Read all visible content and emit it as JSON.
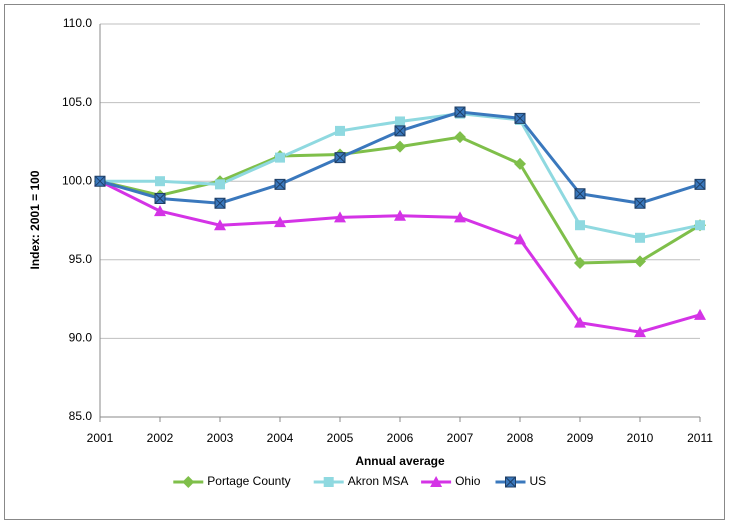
{
  "chart_data": {
    "type": "line",
    "y_label": "Index: 2001 = 100",
    "x_label": "Annual average",
    "categories": [
      "2001",
      "2002",
      "2003",
      "2004",
      "2005",
      "2006",
      "2007",
      "2008",
      "2009",
      "2010",
      "2011"
    ],
    "series": [
      {
        "name": "Portage County",
        "color": "#7fbf4a",
        "marker": "diamond",
        "values": [
          100,
          99.1,
          100,
          101.6,
          101.7,
          102.2,
          102.8,
          101.1,
          94.8,
          94.9,
          97.2
        ]
      },
      {
        "name": "Akron MSA",
        "color": "#8fd9e0",
        "marker": "square",
        "values": [
          100,
          100.0,
          99.8,
          101.5,
          103.2,
          103.8,
          104.3,
          103.9,
          97.2,
          96.4,
          97.2
        ]
      },
      {
        "name": "Ohio",
        "color": "#d433e6",
        "marker": "triangle",
        "values": [
          100,
          98.1,
          97.2,
          97.4,
          97.7,
          97.8,
          97.7,
          96.3,
          91.0,
          90.4,
          91.5
        ]
      },
      {
        "name": "US",
        "color": "#3a78bd",
        "marker": "xsquare",
        "values": [
          100,
          98.9,
          98.6,
          99.8,
          101.5,
          103.2,
          104.4,
          104.0,
          99.2,
          98.6,
          99.8
        ]
      }
    ],
    "ylim": [
      85,
      110
    ],
    "yticks": [
      {
        "value": 85,
        "label": "85.0"
      },
      {
        "value": 90,
        "label": "90.0"
      },
      {
        "value": 95,
        "label": "95.0"
      },
      {
        "value": 100,
        "label": "100.0"
      },
      {
        "value": 105,
        "label": "105.0"
      },
      {
        "value": 110,
        "label": "110.0"
      }
    ],
    "grid": true,
    "legend": "bottom"
  }
}
